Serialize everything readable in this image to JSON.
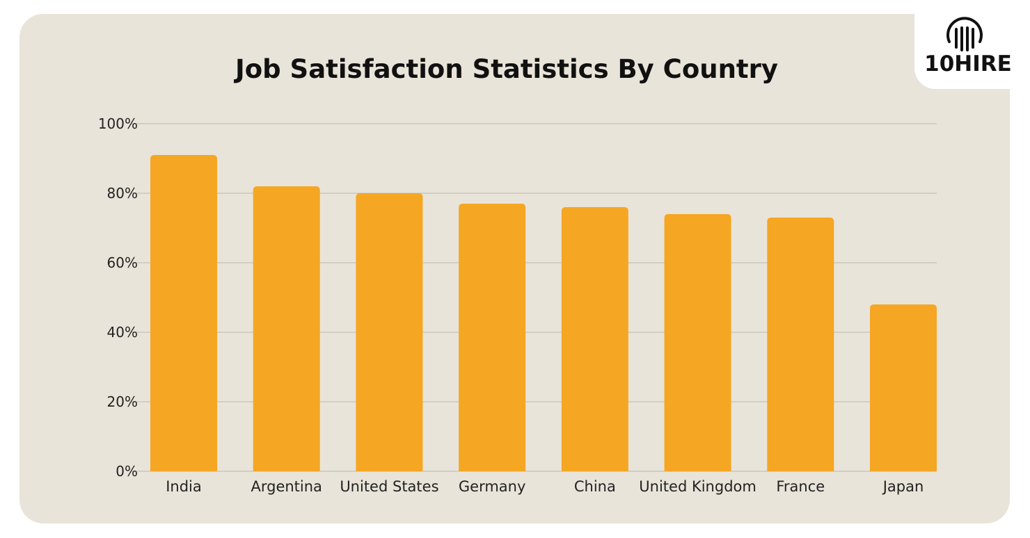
{
  "brand": {
    "logo_text": "10HIRE",
    "logo_icon": "fingerprint-icon"
  },
  "colors": {
    "background": "#e9e4d9",
    "bar": "#f5a623",
    "grid": "#bdb8ad"
  },
  "chart_data": {
    "type": "bar",
    "title": "Job Satisfaction Statistics By Country",
    "xlabel": "",
    "ylabel": "",
    "categories": [
      "India",
      "Argentina",
      "United States",
      "Germany",
      "China",
      "United Kingdom",
      "France",
      "Japan"
    ],
    "values": [
      91,
      82,
      80,
      77,
      76,
      74,
      73,
      48
    ],
    "ylim": [
      0,
      100
    ],
    "yticks": [
      "0%",
      "20%",
      "40%",
      "60%",
      "80%",
      "100%"
    ],
    "grid": true,
    "legend": "none"
  }
}
